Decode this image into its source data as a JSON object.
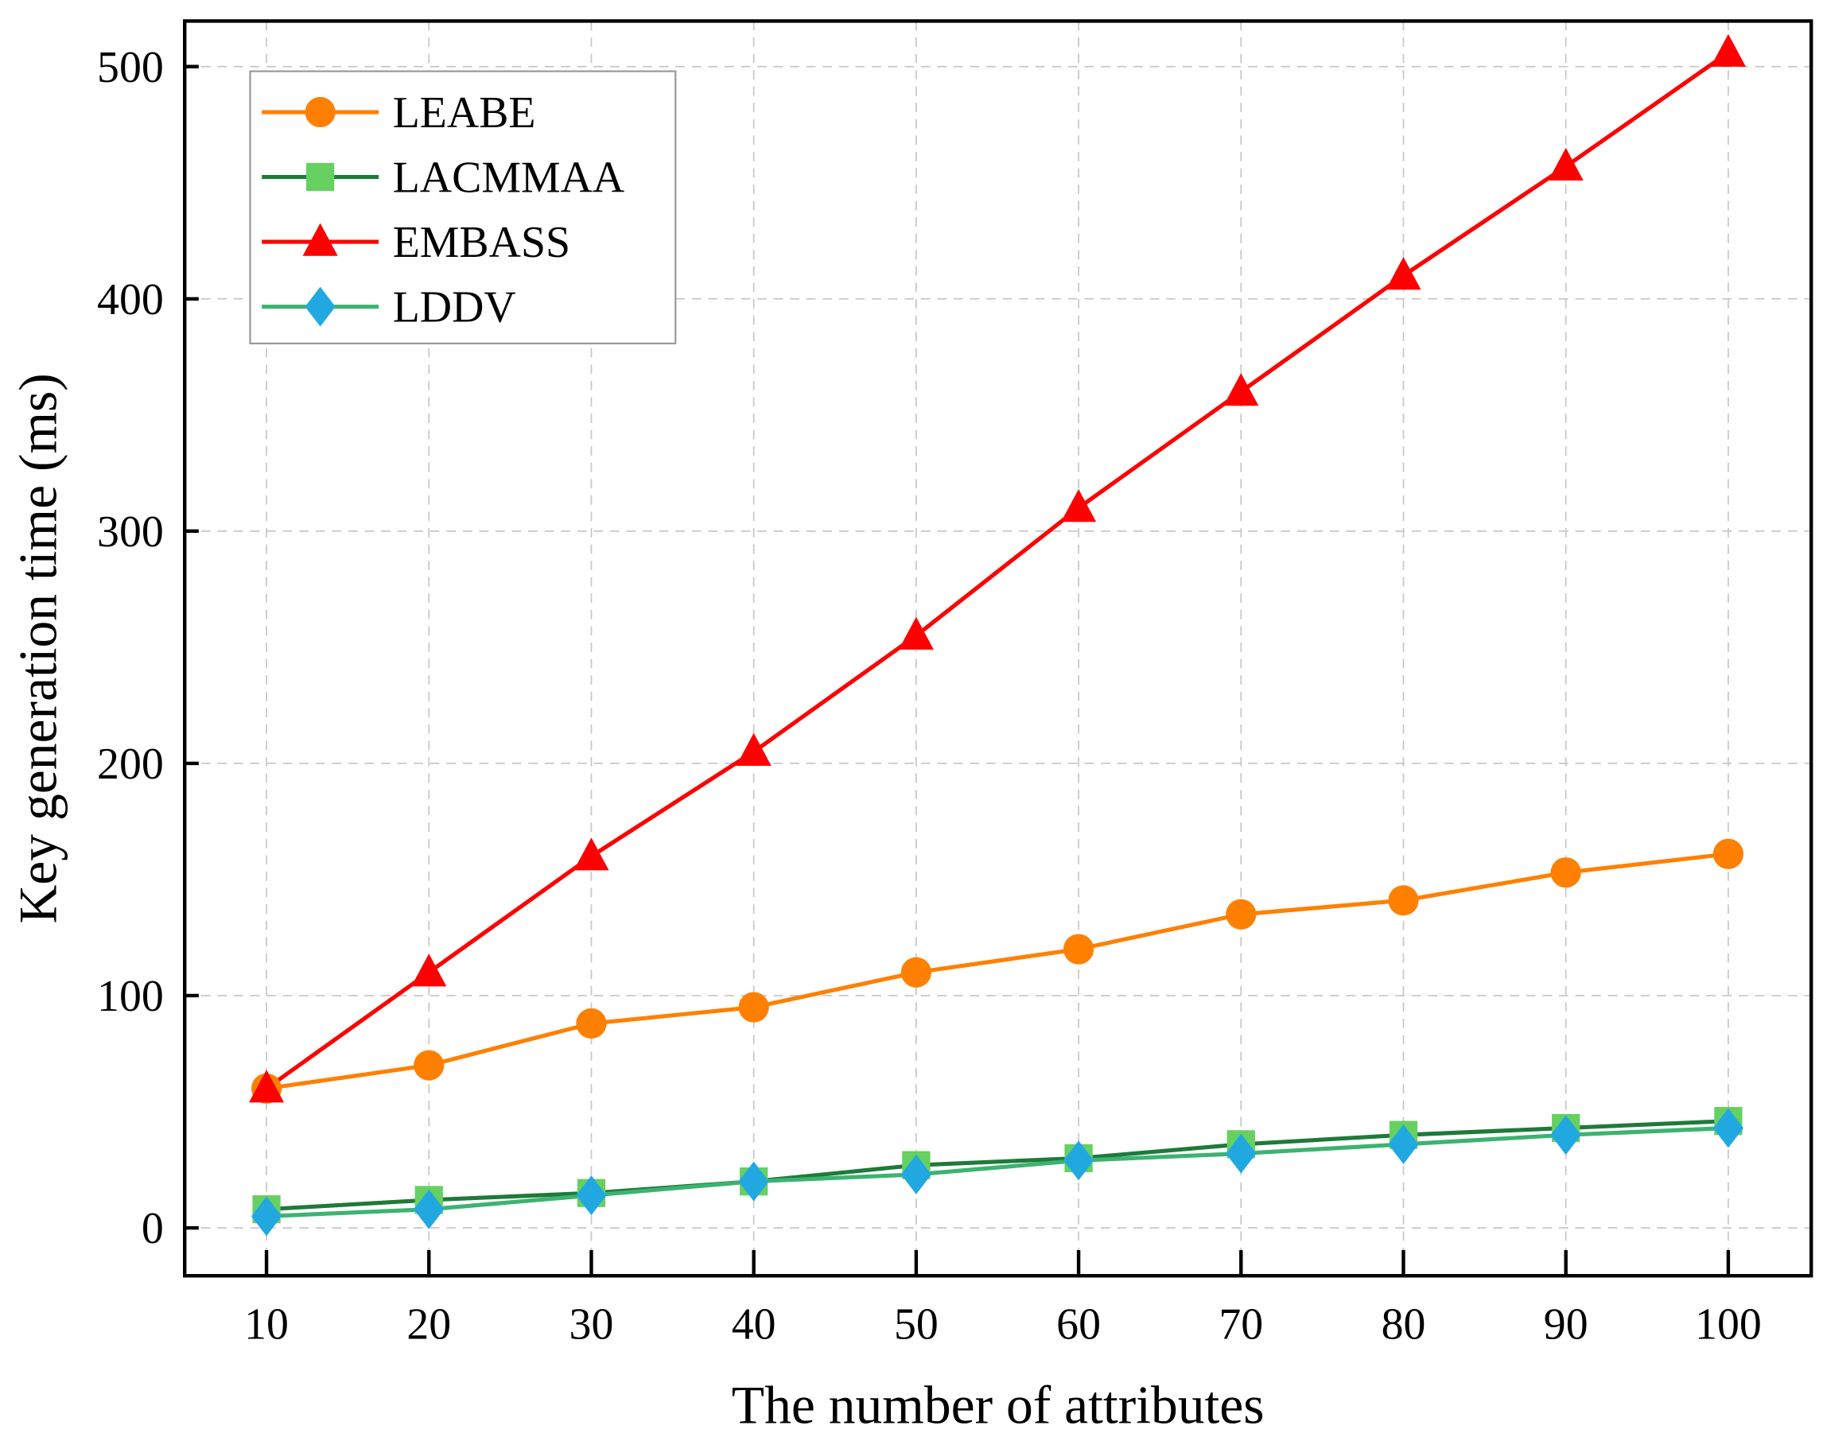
{
  "chart_data": {
    "type": "line",
    "title": "",
    "xlabel": "The number of attributes",
    "ylabel": "Key generation time (ms)",
    "x": [
      10,
      20,
      30,
      40,
      50,
      60,
      70,
      80,
      90,
      100
    ],
    "xticks": [
      "10",
      "20",
      "30",
      "40",
      "50",
      "60",
      "70",
      "80",
      "90",
      "100"
    ],
    "yticks": [
      "0",
      "100",
      "200",
      "300",
      "400",
      "500"
    ],
    "xlim": [
      5,
      105
    ],
    "ylim": [
      -20,
      520
    ],
    "grid": true,
    "legend_position": "top-left",
    "series": [
      {
        "name": "LEABE",
        "marker": "circle",
        "color": "#ff8000",
        "marker_color": "#ff8000",
        "values": [
          60,
          70,
          88,
          95,
          110,
          120,
          135,
          141,
          153,
          161
        ]
      },
      {
        "name": "LACMMAA",
        "marker": "square",
        "color": "#1f7a3a",
        "marker_color": "#66d060",
        "values": [
          8,
          12,
          15,
          20,
          27,
          30,
          36,
          40,
          43,
          46
        ]
      },
      {
        "name": "EMBASS",
        "marker": "triangle",
        "color": "#ff0000",
        "marker_color": "#ff0000",
        "values": [
          60,
          110,
          160,
          205,
          255,
          310,
          360,
          410,
          457,
          506
        ]
      },
      {
        "name": "LDDV",
        "marker": "diamond",
        "color": "#3cb371",
        "marker_color": "#22a8e0",
        "values": [
          5,
          8,
          14,
          20,
          23,
          29,
          32,
          36,
          40,
          43
        ]
      }
    ]
  }
}
